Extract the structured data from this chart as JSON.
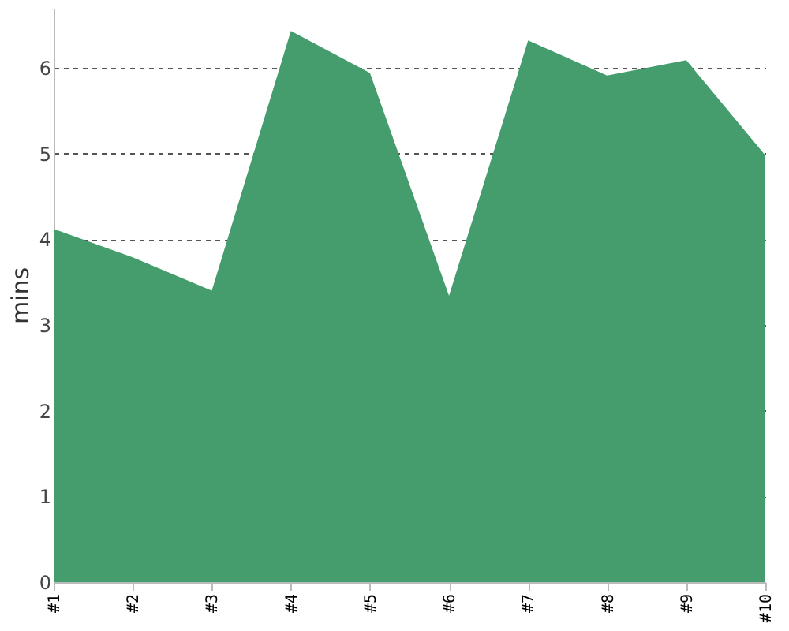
{
  "chart_data": {
    "type": "area",
    "ylabel": "mins",
    "categories": [
      "#1",
      "#2",
      "#3",
      "#4",
      "#5",
      "#6",
      "#7",
      "#8",
      "#9",
      "#10"
    ],
    "series": [
      {
        "color": "#459c6c",
        "values": [
          4.12,
          3.79,
          3.4,
          6.43,
          5.94,
          3.34,
          6.32,
          5.91,
          6.09,
          4.98
        ]
      }
    ],
    "ylim": [
      0,
      6.7
    ],
    "yticks": [
      0,
      1,
      2,
      3,
      4,
      5,
      6
    ],
    "grid": "y",
    "line_style": "dashed"
  }
}
